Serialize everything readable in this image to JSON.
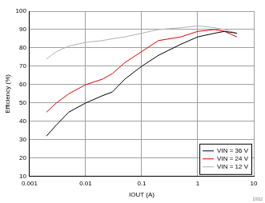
{
  "chart_data": {
    "type": "line",
    "x_label": "IOUT (A)",
    "y_label": "Efficiency (%)",
    "annotation": "D002",
    "log": "x",
    "grid": true,
    "legend": "lower right",
    "xlim": [
      0.001,
      10
    ],
    "xticks": [
      0.001,
      0.01,
      0.1,
      1,
      10
    ],
    "ylim": [
      10,
      100
    ],
    "yticks": [
      10,
      20,
      30,
      40,
      50,
      60,
      70,
      80,
      90,
      100
    ],
    "x": [
      0.002,
      0.003,
      0.005,
      0.01,
      0.02,
      0.03,
      0.05,
      0.1,
      0.2,
      0.5,
      1,
      2,
      3,
      5
    ],
    "series": [
      {
        "name": "VIN = 36 V",
        "color": "#000000",
        "values": [
          32,
          38,
          45,
          50,
          54,
          56,
          63,
          70,
          76,
          82,
          86,
          88,
          89,
          88
        ]
      },
      {
        "name": "VIN = 24 V",
        "color": "#e00000",
        "values": [
          45,
          50,
          55,
          60,
          63,
          66,
          72,
          78,
          84,
          86,
          89,
          90,
          89,
          86
        ]
      },
      {
        "name": "VIN = 12 V",
        "color": "#b0b0b0",
        "values": [
          74,
          78,
          81,
          83,
          84,
          85,
          86,
          88,
          90,
          91,
          92,
          91,
          90,
          88
        ]
      }
    ]
  }
}
